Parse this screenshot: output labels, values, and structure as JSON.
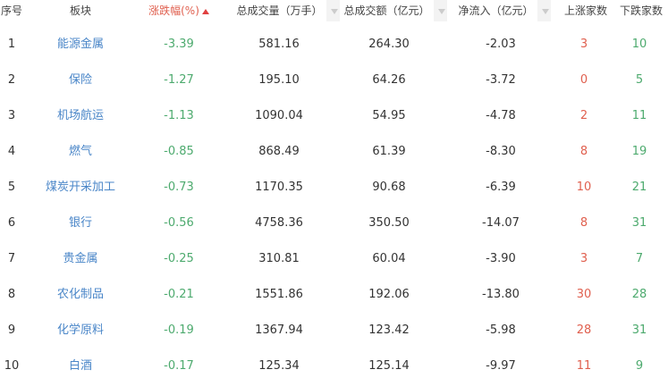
{
  "headers": {
    "idx": "序号",
    "sector": "板块",
    "change": "涨跌幅(%)",
    "volume": "总成交量（万手）",
    "amount": "总成交额（亿元）",
    "inflow": "净流入（亿元）",
    "up": "上涨家数",
    "down": "下跌家数"
  },
  "sort": {
    "column": "change",
    "direction": "ascending-icon"
  },
  "colors": {
    "negative": "#4daa6e",
    "positive": "#e0604f",
    "link": "#4a86c8"
  },
  "rows": [
    {
      "idx": "1",
      "sector": "能源金属",
      "change": "-3.39",
      "volume": "581.16",
      "amount": "264.30",
      "inflow": "-2.03",
      "up": "3",
      "down": "10"
    },
    {
      "idx": "2",
      "sector": "保险",
      "change": "-1.27",
      "volume": "195.10",
      "amount": "64.26",
      "inflow": "-3.72",
      "up": "0",
      "down": "5"
    },
    {
      "idx": "3",
      "sector": "机场航运",
      "change": "-1.13",
      "volume": "1090.04",
      "amount": "54.95",
      "inflow": "-4.78",
      "up": "2",
      "down": "11"
    },
    {
      "idx": "4",
      "sector": "燃气",
      "change": "-0.85",
      "volume": "868.49",
      "amount": "61.39",
      "inflow": "-8.30",
      "up": "8",
      "down": "19"
    },
    {
      "idx": "5",
      "sector": "煤炭开采加工",
      "change": "-0.73",
      "volume": "1170.35",
      "amount": "90.68",
      "inflow": "-6.39",
      "up": "10",
      "down": "21"
    },
    {
      "idx": "6",
      "sector": "银行",
      "change": "-0.56",
      "volume": "4758.36",
      "amount": "350.50",
      "inflow": "-14.07",
      "up": "8",
      "down": "31"
    },
    {
      "idx": "7",
      "sector": "贵金属",
      "change": "-0.25",
      "volume": "310.81",
      "amount": "60.04",
      "inflow": "-3.90",
      "up": "3",
      "down": "7"
    },
    {
      "idx": "8",
      "sector": "农化制品",
      "change": "-0.21",
      "volume": "1551.86",
      "amount": "192.06",
      "inflow": "-13.80",
      "up": "30",
      "down": "28"
    },
    {
      "idx": "9",
      "sector": "化学原料",
      "change": "-0.19",
      "volume": "1367.94",
      "amount": "123.42",
      "inflow": "-5.98",
      "up": "28",
      "down": "31"
    },
    {
      "idx": "10",
      "sector": "白酒",
      "change": "-0.17",
      "volume": "125.34",
      "amount": "125.14",
      "inflow": "-9.97",
      "up": "11",
      "down": "9"
    }
  ]
}
